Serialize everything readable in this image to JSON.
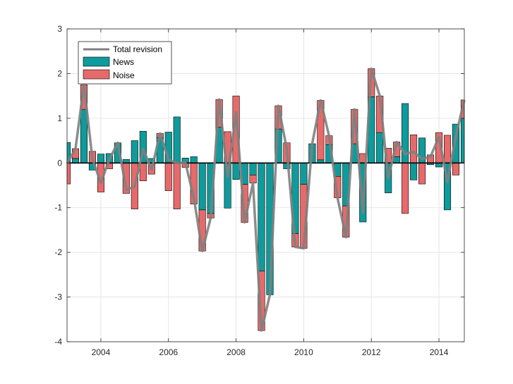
{
  "colors": {
    "news": "#0f9b9b",
    "noise": "#e76a6a",
    "total": "#808080",
    "grid": "#e0e0e0",
    "axis": "#262626"
  },
  "chart_data": {
    "type": "bar",
    "stacked": true,
    "title": "",
    "xlabel": "",
    "ylabel": "",
    "xlim": [
      2003.0,
      2014.75
    ],
    "ylim": [
      -4,
      3
    ],
    "x_ticks": [
      2004,
      2006,
      2008,
      2010,
      2012,
      2014
    ],
    "y_ticks": [
      -4,
      -3,
      -2,
      -1,
      0,
      1,
      2,
      3
    ],
    "grid": true,
    "legend_position": "top-left",
    "x": [
      2003.0,
      2003.25,
      2003.5,
      2003.75,
      2004.0,
      2004.25,
      2004.5,
      2004.75,
      2005.0,
      2005.25,
      2005.5,
      2005.75,
      2006.0,
      2006.25,
      2006.5,
      2006.75,
      2007.0,
      2007.25,
      2007.5,
      2007.75,
      2008.0,
      2008.25,
      2008.5,
      2008.75,
      2009.0,
      2009.25,
      2009.5,
      2009.75,
      2010.0,
      2010.25,
      2010.5,
      2010.75,
      2011.0,
      2011.25,
      2011.5,
      2011.75,
      2012.0,
      2012.25,
      2012.5,
      2012.75,
      2013.0,
      2013.25,
      2013.5,
      2013.75,
      2014.0,
      2014.25,
      2014.5,
      2014.75
    ],
    "series": [
      {
        "name": "News",
        "values": [
          0.46,
          0.1,
          1.2,
          -0.16,
          0.2,
          0.21,
          0.45,
          0.08,
          0.5,
          0.71,
          0.1,
          0.57,
          0.69,
          1.03,
          0.11,
          0.14,
          -1.05,
          -1.13,
          0.8,
          -1.01,
          -0.37,
          -0.48,
          -0.27,
          -2.42,
          -2.95,
          0.76,
          -0.13,
          -1.58,
          -0.48,
          0.43,
          0.07,
          0.41,
          -0.3,
          -0.96,
          0.43,
          -1.32,
          1.48,
          0.68,
          -0.67,
          0.14,
          1.33,
          -0.38,
          0.56,
          -0.04,
          -0.09,
          -1.05,
          0.87,
          1.0
        ]
      },
      {
        "name": "Noise",
        "values": [
          -0.47,
          0.22,
          0.55,
          0.26,
          -0.65,
          -0.13,
          0.0,
          -0.68,
          -1.03,
          -0.4,
          -0.25,
          0.09,
          -0.62,
          -1.03,
          -0.1,
          -0.92,
          -0.92,
          -0.1,
          0.62,
          0.7,
          1.5,
          -0.85,
          -0.18,
          -1.33,
          0.0,
          0.52,
          0.45,
          -0.3,
          -1.43,
          0.0,
          1.33,
          0.2,
          -0.48,
          -0.7,
          0.77,
          0.21,
          0.63,
          0.82,
          0.33,
          0.33,
          -1.13,
          0.63,
          -0.47,
          0.18,
          0.68,
          0.62,
          -0.27,
          0.41
        ]
      },
      {
        "name": "Total revision",
        "type": "line",
        "values": [
          -0.01,
          0.32,
          1.75,
          0.1,
          -0.45,
          0.08,
          0.45,
          -0.6,
          -0.53,
          0.31,
          -0.15,
          0.66,
          0.07,
          0.0,
          0.01,
          -0.78,
          -1.97,
          -1.23,
          1.42,
          -0.31,
          1.13,
          -1.33,
          -0.45,
          -3.75,
          -2.95,
          1.28,
          0.32,
          -1.88,
          -1.91,
          0.43,
          1.4,
          0.61,
          -0.78,
          -1.66,
          1.2,
          -1.11,
          2.11,
          1.5,
          -0.34,
          0.47,
          0.2,
          0.25,
          0.09,
          0.14,
          0.59,
          -0.43,
          0.6,
          1.41
        ]
      }
    ],
    "legend": [
      "Total revision",
      "News",
      "Noise"
    ]
  }
}
